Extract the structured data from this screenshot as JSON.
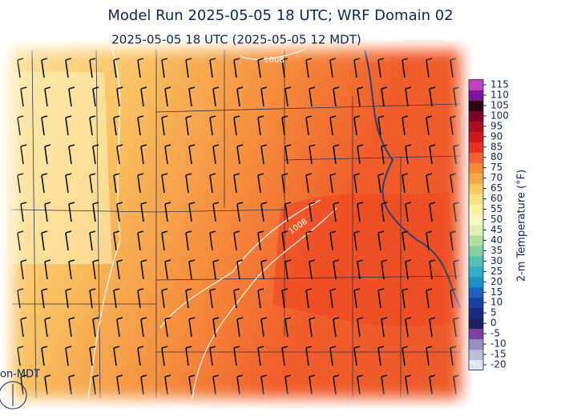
{
  "title": "Model Run 2025-05-05 18 UTC; WRF Domain 02",
  "subtitle": "2025-05-05 18 UTC  (2025-05-05 12 MDT)",
  "corner_label": "on-MDT",
  "contour_labels": [
    "1008",
    "1008"
  ],
  "colorbar": {
    "label": "2-m Temperature (°F)",
    "range": [
      -20,
      115
    ],
    "ticks": [
      -20,
      -15,
      -10,
      -5,
      0,
      5,
      10,
      15,
      20,
      25,
      30,
      35,
      40,
      45,
      50,
      55,
      60,
      65,
      70,
      75,
      80,
      85,
      90,
      95,
      100,
      105,
      110,
      115
    ],
    "colors": [
      "#dde8f0",
      "#b8c0d8",
      "#9890c0",
      "#8040a0",
      "#202060",
      "#1a2a80",
      "#1840a0",
      "#2060c0",
      "#2090c8",
      "#30b0c8",
      "#50c0b0",
      "#80d0a0",
      "#b0e0a0",
      "#e0f0b0",
      "#f8f8c0",
      "#fff0a0",
      "#fde080",
      "#fcc860",
      "#f9a848",
      "#f88838",
      "#f46030",
      "#e83020",
      "#d01818",
      "#b00c20",
      "#800020",
      "#300010",
      "#8010a0",
      "#c040c0"
    ]
  }
}
